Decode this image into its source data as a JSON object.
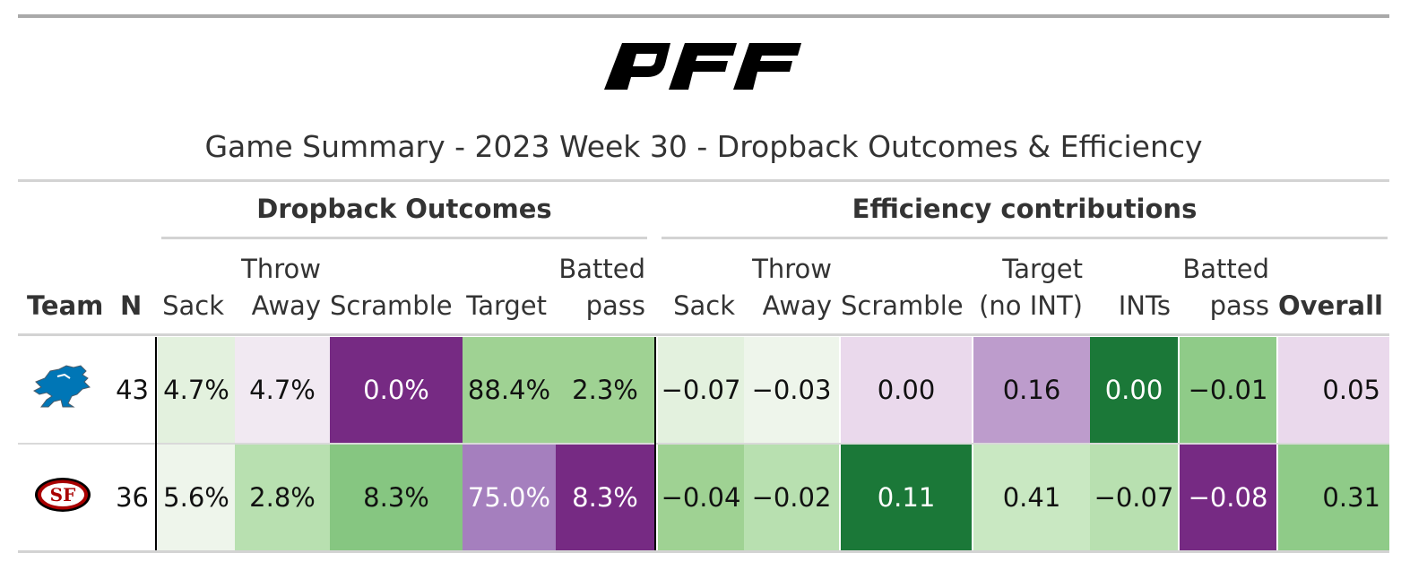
{
  "title": "Game Summary - 2023 Week 30 - Dropback Outcomes & Efficiency",
  "spanners": {
    "outcomes": "Dropback Outcomes",
    "efficiency": "Efficiency contributions"
  },
  "columns": {
    "team": "Team",
    "n": "N",
    "outcomes": [
      {
        "line1": "",
        "line2": "Sack"
      },
      {
        "line1": "Throw",
        "line2": "Away"
      },
      {
        "line1": "",
        "line2": "Scramble"
      },
      {
        "line1": "",
        "line2": "Target"
      },
      {
        "line1": "Batted",
        "line2": "pass"
      }
    ],
    "efficiency": [
      {
        "line1": "",
        "line2": "Sack"
      },
      {
        "line1": "Throw",
        "line2": "Away"
      },
      {
        "line1": "",
        "line2": "Scramble"
      },
      {
        "line1": "Target",
        "line2": "(no INT)"
      },
      {
        "line1": "",
        "line2": "INTs"
      },
      {
        "line1": "Batted",
        "line2": "pass"
      },
      {
        "line1": "",
        "line2": "Overall"
      }
    ]
  },
  "rows": [
    {
      "team_logo": "detroit-lions-logo",
      "n": "43",
      "outcomes": [
        "4.7%",
        "4.7%",
        "0.0%",
        "88.4%",
        "2.3%"
      ],
      "efficiency": [
        "−0.07",
        "−0.03",
        "0.00",
        "0.16",
        "0.00",
        "−0.01",
        "0.05"
      ]
    },
    {
      "team_logo": "san-francisco-49ers-logo",
      "n": "36",
      "outcomes": [
        "5.6%",
        "2.8%",
        "8.3%",
        "75.0%",
        "8.3%"
      ],
      "efficiency": [
        "−0.04",
        "−0.02",
        "0.11",
        "0.41",
        "−0.07",
        "−0.08",
        "0.31"
      ]
    }
  ],
  "colors": {
    "row1": [
      "#e3f1de",
      "#f1e9f2",
      "#762a83",
      "#9fd293",
      "#9fd293",
      "#e3f1de",
      "#eef5eb",
      "#ead9ec",
      "#bd9ccc",
      "#1b7838",
      "#8fcb88",
      "#ead9ec"
    ],
    "row2": [
      "#eef5eb",
      "#b8e0b0",
      "#86c681",
      "#a57fbe",
      "#762a83",
      "#9fd293",
      "#b8e0b0",
      "#1b7838",
      "#c9e8c2",
      "#b8e0b0",
      "#762a83",
      "#8fcb88"
    ],
    "text_light": "#ffffff",
    "text_dark": "#111111",
    "lions_blue": "#0076b6",
    "niners_red": "#aa0000",
    "niners_gold": "#b3995d"
  }
}
